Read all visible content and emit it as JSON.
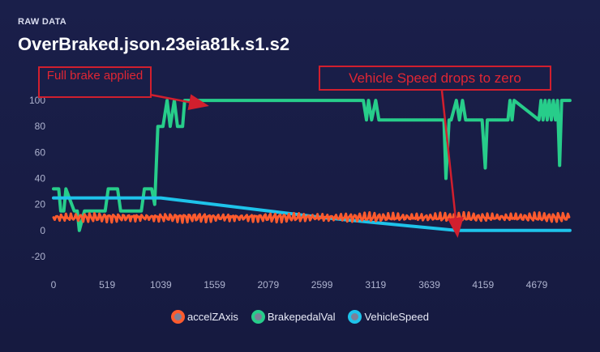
{
  "header": {
    "section_label": "RAW DATA",
    "title": "OverBraked.json.23eia81k.s1.s2"
  },
  "annotations": [
    {
      "text": "Full brake applied"
    },
    {
      "text": "Vehicle Speed drops to zero"
    }
  ],
  "chart_data": {
    "type": "line",
    "xlim": [
      0,
      5040
    ],
    "ylim": [
      -30,
      110
    ],
    "x_ticks": [
      "0",
      "519",
      "1039",
      "1559",
      "2079",
      "2599",
      "3119",
      "3639",
      "4159",
      "4679"
    ],
    "x_tick_values": [
      0,
      519,
      1039,
      1559,
      2079,
      2599,
      3119,
      3639,
      4159,
      4679
    ],
    "y_ticks": [
      "100",
      "80",
      "60",
      "40",
      "20",
      "0",
      "-20"
    ],
    "y_tick_values": [
      100,
      80,
      60,
      40,
      20,
      0,
      -20
    ],
    "grid": false,
    "legend_position": "bottom",
    "series": [
      {
        "name": "accelZAxis",
        "color": "#ff5b2e",
        "x": [
          0,
          5000
        ],
        "y": [
          10,
          10
        ],
        "noise": "high-frequency oscillation between about 6 and 13"
      },
      {
        "name": "BrakepedalVal",
        "color": "#27cd8a",
        "x": [
          0,
          50,
          70,
          100,
          120,
          200,
          230,
          250,
          300,
          500,
          530,
          620,
          650,
          850,
          880,
          950,
          980,
          1010,
          1060,
          1100,
          1130,
          1170,
          1200,
          1250,
          1270,
          1320,
          3000,
          3030,
          3050,
          3080,
          3120,
          3150,
          3200,
          3400,
          3700,
          3780,
          3800,
          3830,
          3850,
          3900,
          3930,
          3960,
          3990,
          4150,
          4180,
          4200,
          4230,
          4300,
          4400,
          4420,
          4440,
          4460,
          4700,
          4720,
          4740,
          4760,
          4780,
          4800,
          4820,
          4840,
          4860,
          4880,
          4900,
          4920,
          5000
        ],
        "y": [
          32,
          32,
          15,
          15,
          32,
          15,
          15,
          0,
          15,
          15,
          32,
          32,
          15,
          15,
          32,
          32,
          20,
          80,
          80,
          100,
          80,
          100,
          80,
          80,
          100,
          100,
          100,
          85,
          100,
          85,
          100,
          85,
          85,
          85,
          85,
          85,
          40,
          85,
          85,
          100,
          85,
          100,
          85,
          85,
          48,
          85,
          85,
          85,
          85,
          100,
          85,
          100,
          85,
          100,
          85,
          100,
          85,
          100,
          85,
          100,
          85,
          100,
          50,
          100,
          100
        ]
      },
      {
        "name": "VehicleSpeed",
        "color": "#1ec3ea",
        "x": [
          0,
          1039,
          2599,
          3900,
          3960,
          5000
        ],
        "y": [
          25,
          25,
          10,
          0,
          0,
          0
        ]
      }
    ]
  }
}
